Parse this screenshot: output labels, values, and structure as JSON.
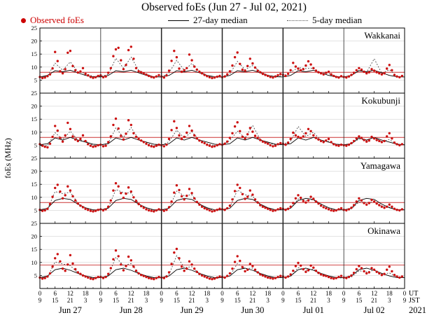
{
  "legend": {
    "observed": {
      "label": "Observed foEs",
      "color": "#cc0000"
    },
    "median27": {
      "label": "27-day median"
    },
    "median5": {
      "label": "5-day median"
    }
  },
  "chart_data": {
    "type": "scatter",
    "title": "Observed foEs (Jun 27 - Jul 02, 2021)",
    "ylabel": "foEs (MHz)",
    "ylim": [
      0,
      25
    ],
    "yticks": [
      5,
      10,
      15,
      20,
      25
    ],
    "grid_y": [
      5,
      10,
      15,
      20
    ],
    "x_unit": "hour",
    "x_range_hours": [
      0,
      144
    ],
    "ut_ticks": [
      "0",
      "6",
      "12",
      "18"
    ],
    "jst_ticks": [
      "9",
      "15",
      "21",
      "3"
    ],
    "ut_tick_final": "0",
    "jst_tick_final": "9",
    "ut_label": "UT",
    "jst_label": "JST",
    "year_label": "2021",
    "day_labels": [
      "Jun 27",
      "Jun 28",
      "Jun 29",
      "Jun 30",
      "Jul 01",
      "Jul 02"
    ],
    "colors": {
      "observed": "#cc1111",
      "median27": "#000000",
      "median5": "#444444",
      "threshold": "#cc3333",
      "grid": "#c9c9c9",
      "day_line": "#222222"
    },
    "stations": [
      {
        "name": "Wakkanai",
        "threshold_mhz": 8,
        "observed_hourly": [
          6.2,
          5.8,
          6.0,
          6.5,
          7.2,
          9.5,
          15.8,
          12.3,
          8.4,
          7.6,
          9.2,
          15.5,
          16.2,
          10.4,
          8.8,
          7.9,
          8.3,
          9.6,
          7.4,
          6.8,
          6.2,
          5.9,
          6.1,
          6.6,
          6.8,
          6.1,
          6.4,
          7.8,
          9.6,
          14.2,
          16.8,
          17.4,
          12.6,
          9.2,
          10.8,
          16.5,
          17.8,
          13.2,
          9.6,
          8.4,
          8.0,
          7.6,
          7.1,
          6.6,
          6.2,
          6.0,
          6.4,
          6.9,
          6.4,
          6.0,
          6.8,
          8.6,
          12.4,
          16.2,
          13.8,
          9.4,
          8.2,
          8.8,
          9.6,
          14.8,
          12.6,
          10.2,
          9.0,
          8.2,
          7.6,
          7.0,
          6.5,
          6.1,
          5.8,
          6.0,
          6.3,
          6.6,
          6.1,
          6.4,
          7.2,
          8.4,
          10.6,
          13.8,
          15.6,
          11.2,
          9.0,
          8.6,
          10.4,
          13.2,
          11.4,
          9.8,
          8.6,
          8.0,
          7.4,
          7.0,
          6.6,
          6.2,
          6.0,
          6.4,
          6.9,
          7.3,
          7.0,
          6.6,
          7.4,
          8.8,
          11.6,
          10.2,
          9.4,
          8.8,
          9.2,
          10.6,
          12.2,
          11.0,
          9.6,
          8.6,
          8.0,
          7.6,
          7.2,
          7.8,
          8.2,
          7.2,
          6.6,
          6.2,
          6.0,
          6.5,
          6.2,
          6.0,
          6.4,
          7.0,
          7.8,
          8.8,
          9.6,
          9.0,
          8.2,
          7.6,
          8.0,
          9.2,
          8.6,
          8.0,
          7.6,
          7.2,
          7.6,
          9.4,
          10.8,
          8.8,
          7.0,
          6.4,
          6.1,
          6.6
        ],
        "median27_daily_3h": [
          6.2,
          6.8,
          8.6,
          8.2,
          8.8,
          7.8,
          6.8,
          6.3
        ],
        "median5_3h": [
          6.0,
          6.6,
          11.5,
          8.8,
          12.0,
          8.2,
          7.6,
          6.4,
          6.4,
          7.2,
          13.4,
          9.6,
          13.8,
          8.8,
          7.2,
          6.3,
          6.2,
          7.8,
          12.6,
          8.8,
          11.4,
          8.4,
          6.8,
          6.0,
          6.2,
          7.4,
          12.2,
          9.0,
          10.6,
          8.2,
          6.8,
          6.4,
          6.6,
          8.0,
          9.8,
          9.4,
          9.6,
          7.8,
          7.6,
          6.4,
          6.1,
          6.8,
          8.8,
          8.0,
          13.2,
          7.6,
          9.0,
          6.4,
          6.2
        ]
      },
      {
        "name": "Kokubunji",
        "threshold_mhz": 8,
        "observed_hourly": [
          5.4,
          4.8,
          4.4,
          4.2,
          5.6,
          8.2,
          12.4,
          10.6,
          7.8,
          6.4,
          8.8,
          13.6,
          11.2,
          8.4,
          7.2,
          6.6,
          7.4,
          8.8,
          6.6,
          5.4,
          4.8,
          4.4,
          4.6,
          5.0,
          5.2,
          4.6,
          4.8,
          6.2,
          8.4,
          12.8,
          15.2,
          11.4,
          8.6,
          7.2,
          9.4,
          14.6,
          12.8,
          9.6,
          8.2,
          7.4,
          6.8,
          6.2,
          5.6,
          5.0,
          4.6,
          4.4,
          4.8,
          5.2,
          5.0,
          4.6,
          5.2,
          7.4,
          10.8,
          14.2,
          11.6,
          8.8,
          7.4,
          8.2,
          9.8,
          12.4,
          10.6,
          8.8,
          7.6,
          6.8,
          6.2,
          5.8,
          5.2,
          4.8,
          4.4,
          4.6,
          5.0,
          5.4,
          5.2,
          5.6,
          6.4,
          7.8,
          9.6,
          12.2,
          13.8,
          10.4,
          8.2,
          7.6,
          9.2,
          11.6,
          10.2,
          8.6,
          7.8,
          7.0,
          6.4,
          6.0,
          5.6,
          5.0,
          4.6,
          4.8,
          5.4,
          5.8,
          5.6,
          5.2,
          6.0,
          7.4,
          9.8,
          8.8,
          8.2,
          7.8,
          8.4,
          9.6,
          11.2,
          10.4,
          8.8,
          7.8,
          7.2,
          6.6,
          6.2,
          6.8,
          7.4,
          6.2,
          5.4,
          5.0,
          4.8,
          5.2,
          5.0,
          4.8,
          5.2,
          5.8,
          6.6,
          7.6,
          8.4,
          7.8,
          7.0,
          6.4,
          6.8,
          8.2,
          7.6,
          7.0,
          6.6,
          6.2,
          6.6,
          8.4,
          9.6,
          7.6,
          6.0,
          5.4,
          5.0,
          5.4
        ],
        "median27_daily_3h": [
          5.2,
          5.6,
          7.8,
          7.0,
          8.0,
          7.0,
          6.2,
          5.4
        ],
        "median5_3h": [
          5.0,
          4.8,
          9.8,
          7.2,
          10.4,
          7.0,
          6.6,
          5.0,
          5.0,
          5.8,
          11.6,
          8.0,
          11.8,
          7.4,
          5.8,
          4.8,
          4.9,
          6.4,
          10.8,
          7.8,
          10.2,
          7.0,
          5.6,
          4.8,
          5.2,
          6.8,
          10.4,
          7.8,
          12.6,
          7.2,
          5.8,
          5.2,
          5.4,
          6.6,
          12.2,
          8.4,
          10.0,
          6.8,
          6.4,
          5.2,
          5.0,
          5.6,
          7.4,
          7.0,
          8.0,
          6.4,
          7.2,
          5.2,
          5.1
        ]
      },
      {
        "name": "Yamagawa",
        "threshold_mhz": 8,
        "observed_hourly": [
          5.2,
          4.8,
          5.0,
          5.6,
          7.4,
          10.2,
          13.6,
          14.8,
          12.2,
          9.6,
          10.8,
          14.2,
          12.6,
          10.4,
          8.8,
          7.6,
          6.8,
          6.2,
          5.6,
          5.2,
          4.8,
          4.6,
          4.8,
          5.2,
          5.4,
          5.0,
          5.4,
          6.4,
          8.8,
          12.6,
          15.4,
          14.2,
          11.6,
          9.8,
          11.4,
          13.8,
          12.2,
          10.0,
          8.6,
          7.4,
          6.6,
          6.0,
          5.4,
          5.0,
          4.8,
          4.6,
          5.0,
          5.4,
          5.2,
          4.8,
          5.2,
          6.2,
          8.4,
          11.8,
          14.6,
          12.8,
          10.4,
          9.2,
          10.6,
          13.2,
          11.6,
          9.6,
          8.2,
          7.2,
          6.4,
          5.8,
          5.4,
          5.0,
          4.6,
          4.8,
          5.2,
          5.6,
          5.4,
          5.2,
          5.8,
          6.8,
          9.2,
          12.4,
          14.8,
          13.6,
          11.2,
          9.4,
          10.2,
          12.6,
          11.0,
          9.2,
          8.0,
          7.0,
          6.4,
          6.0,
          5.6,
          5.2,
          4.8,
          5.0,
          5.4,
          5.8,
          5.6,
          5.2,
          5.6,
          6.4,
          7.8,
          9.6,
          10.8,
          9.8,
          8.6,
          8.0,
          8.8,
          10.2,
          9.4,
          8.4,
          7.6,
          6.8,
          6.2,
          5.8,
          5.4,
          5.0,
          4.8,
          5.0,
          5.4,
          5.8,
          5.2,
          5.0,
          5.4,
          6.0,
          7.0,
          8.4,
          9.6,
          8.8,
          7.8,
          7.2,
          7.8,
          9.0,
          8.4,
          7.6,
          7.0,
          6.4,
          6.0,
          6.4,
          7.2,
          6.4,
          5.6,
          5.2,
          5.0,
          5.4
        ],
        "median27_daily_3h": [
          5.2,
          5.8,
          8.8,
          9.6,
          9.2,
          7.4,
          6.0,
          5.2
        ],
        "median5_3h": [
          5.0,
          5.4,
          12.2,
          11.4,
          12.0,
          7.8,
          5.8,
          5.0,
          5.2,
          6.0,
          13.0,
          11.8,
          11.6,
          7.6,
          5.6,
          5.0,
          5.0,
          5.8,
          12.4,
          10.6,
          11.0,
          7.4,
          5.6,
          5.0,
          5.2,
          6.2,
          12.8,
          11.0,
          10.4,
          7.2,
          5.8,
          5.2,
          5.4,
          5.8,
          9.4,
          8.8,
          9.0,
          6.8,
          5.6,
          5.2,
          5.2,
          5.6,
          8.2,
          8.0,
          8.2,
          6.6,
          6.2,
          5.4,
          5.2
        ]
      },
      {
        "name": "Okinawa",
        "threshold_mhz": 9,
        "observed_hourly": [
          4.2,
          3.8,
          4.0,
          4.6,
          5.8,
          8.4,
          11.6,
          13.2,
          10.4,
          7.6,
          6.8,
          9.2,
          12.8,
          9.6,
          7.4,
          6.2,
          5.6,
          5.0,
          4.6,
          4.2,
          3.8,
          3.6,
          4.0,
          4.4,
          4.4,
          4.0,
          4.4,
          5.6,
          7.8,
          11.2,
          14.6,
          12.4,
          9.2,
          7.0,
          8.6,
          12.2,
          10.8,
          8.4,
          6.8,
          5.8,
          5.2,
          4.8,
          4.4,
          4.0,
          3.8,
          3.6,
          4.0,
          4.4,
          4.2,
          4.0,
          4.6,
          6.2,
          9.4,
          13.8,
          15.2,
          11.6,
          8.4,
          6.8,
          7.6,
          10.4,
          9.2,
          7.6,
          6.4,
          5.6,
          5.0,
          4.6,
          4.2,
          3.8,
          3.6,
          3.8,
          4.2,
          4.6,
          4.4,
          4.2,
          4.8,
          5.8,
          7.6,
          10.2,
          12.4,
          10.6,
          8.2,
          6.6,
          7.2,
          9.4,
          8.6,
          7.2,
          6.2,
          5.4,
          5.0,
          4.6,
          4.2,
          4.0,
          3.8,
          4.0,
          4.4,
          4.8,
          4.6,
          4.2,
          4.6,
          5.4,
          6.8,
          8.6,
          9.8,
          8.8,
          7.4,
          6.4,
          7.0,
          8.8,
          8.0,
          6.8,
          6.0,
          5.4,
          5.0,
          4.8,
          4.4,
          4.0,
          3.8,
          4.0,
          4.4,
          4.8,
          4.2,
          4.0,
          4.4,
          5.0,
          6.0,
          7.4,
          8.6,
          7.8,
          6.6,
          5.8,
          6.2,
          7.8,
          7.2,
          6.4,
          5.8,
          5.2,
          5.6,
          7.2,
          8.4,
          6.6,
          5.2,
          4.6,
          4.2,
          4.6
        ],
        "median27_daily_3h": [
          4.2,
          4.8,
          7.2,
          7.8,
          7.0,
          5.8,
          4.8,
          4.2
        ],
        "median5_3h": [
          4.0,
          4.4,
          10.2,
          9.4,
          8.8,
          6.0,
          4.6,
          4.0,
          4.2,
          5.0,
          12.0,
          8.8,
          9.6,
          5.8,
          4.6,
          4.0,
          4.0,
          5.4,
          12.6,
          8.0,
          8.4,
          5.6,
          4.4,
          4.0,
          4.2,
          4.8,
          9.6,
          7.6,
          7.8,
          5.4,
          4.4,
          4.2,
          4.4,
          4.6,
          8.0,
          7.0,
          7.4,
          5.2,
          4.6,
          4.2,
          4.0,
          4.4,
          6.8,
          6.4,
          7.0,
          5.4,
          6.0,
          4.4,
          4.2
        ]
      }
    ]
  }
}
